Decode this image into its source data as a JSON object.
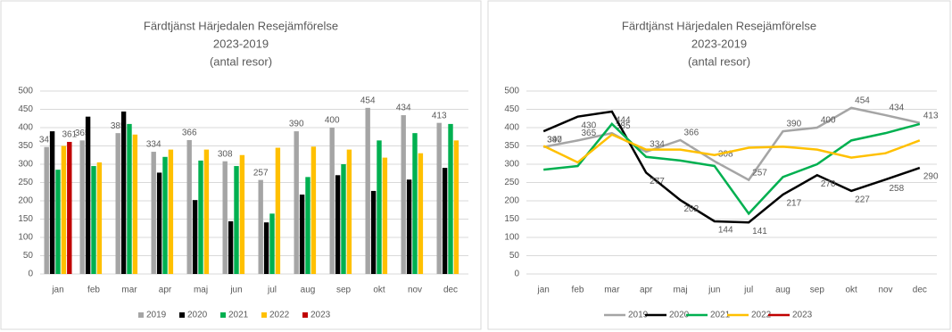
{
  "chart_data": [
    {
      "type": "bar",
      "title_lines": [
        "Färdtjänst Härjedalen Resejämförelse",
        "2023-2019",
        "(antal resor)"
      ],
      "categories": [
        "jan",
        "feb",
        "mar",
        "apr",
        "maj",
        "jun",
        "jul",
        "aug",
        "sep",
        "okt",
        "nov",
        "dec"
      ],
      "series": [
        {
          "name": "2019",
          "color": "#a5a5a5",
          "labels": true,
          "values": [
            347,
            365,
            385,
            334,
            366,
            308,
            257,
            390,
            400,
            454,
            434,
            413
          ]
        },
        {
          "name": "2020",
          "color": "#000000",
          "labels": false,
          "values": [
            390,
            430,
            444,
            277,
            202,
            144,
            141,
            217,
            270,
            227,
            258,
            290
          ]
        },
        {
          "name": "2021",
          "color": "#00b050",
          "labels": false,
          "values": [
            285,
            295,
            410,
            320,
            310,
            295,
            165,
            265,
            300,
            365,
            385,
            410
          ]
        },
        {
          "name": "2022",
          "color": "#ffc000",
          "labels": false,
          "values": [
            350,
            305,
            381,
            340,
            340,
            325,
            345,
            348,
            340,
            318,
            330,
            365
          ]
        },
        {
          "name": "2023",
          "color": "#c00000",
          "labels": true,
          "values": [
            361,
            null,
            null,
            null,
            null,
            null,
            null,
            null,
            null,
            null,
            null,
            null
          ]
        }
      ],
      "ylim": [
        0,
        500
      ],
      "yticks": [
        0,
        50,
        100,
        150,
        200,
        250,
        300,
        350,
        400,
        450,
        500
      ],
      "grid": true,
      "legend": "bottom"
    },
    {
      "type": "line",
      "title_lines": [
        "Färdtjänst Härjedalen Resejämförelse",
        "2023-2019",
        "(antal resor)"
      ],
      "categories": [
        "jan",
        "feb",
        "mar",
        "apr",
        "maj",
        "jun",
        "jul",
        "aug",
        "sep",
        "okt",
        "nov",
        "dec"
      ],
      "series": [
        {
          "name": "2019",
          "color": "#a5a5a5",
          "labels": true,
          "values": [
            347,
            365,
            385,
            334,
            366,
            308,
            257,
            390,
            400,
            454,
            434,
            413
          ]
        },
        {
          "name": "2020",
          "color": "#000000",
          "labels": true,
          "values": [
            390,
            430,
            444,
            277,
            202,
            144,
            141,
            217,
            270,
            227,
            258,
            290
          ]
        },
        {
          "name": "2021",
          "color": "#00b050",
          "labels": false,
          "values": [
            285,
            295,
            410,
            320,
            310,
            295,
            165,
            265,
            300,
            365,
            385,
            410
          ]
        },
        {
          "name": "2022",
          "color": "#ffc000",
          "labels": false,
          "values": [
            350,
            305,
            381,
            340,
            340,
            325,
            345,
            348,
            340,
            318,
            330,
            365
          ]
        },
        {
          "name": "2023",
          "color": "#c00000",
          "labels": false,
          "values": [
            361,
            null,
            null,
            null,
            null,
            null,
            null,
            null,
            null,
            null,
            null,
            null
          ]
        }
      ],
      "ylim": [
        0,
        500
      ],
      "yticks": [
        0,
        50,
        100,
        150,
        200,
        250,
        300,
        350,
        400,
        450,
        500
      ],
      "grid": true,
      "legend": "bottom"
    }
  ]
}
